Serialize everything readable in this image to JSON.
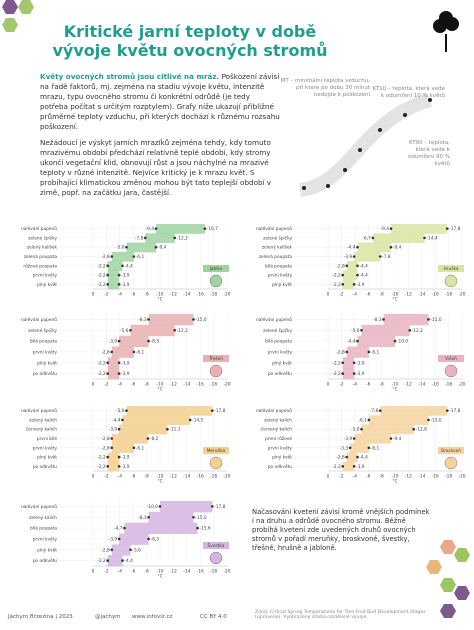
{
  "header": {
    "title": "Kritické jarní teploty v době vývoje květu ovocných stromů"
  },
  "intro": {
    "lead": "Květy ovocných stromů jsou citlivé na mráz.",
    "text": "Poškození závisí na řadě faktorů, mj. zejména na stadiu vývoje květu, intenzitě mrazu, typu ovocného stromu či konkrétní odrůdě (je tedy potřeba počítat s určitým rozptylem). Grafy níže ukazují přibližné průměrné teploty vzduchu, při kterých dochází k různému rozsahu poškození.",
    "p2": "Nežádoucí je výskyt jarních mrazíků zejména tehdy, kdy tomuto mrazivému období předchází relativně teplé období, kdy stromy ukončí vegetační klid, obnovují růst a jsou náchylné na mrazivé teploty v různé intenzitě. Nejvíce kritický je k mrazu květ. S probíhající klimatickou změnou mohou být tato teplejší období v zimě, popř. na začátku jara, častější."
  },
  "legend": {
    "mt": "MT – minimální teplota vzduchu, při které po dobu 30 minut nedojde k poškození",
    "kt10": "KT10 – teplota, která vede k odumření 10 % květů",
    "kt90": "KT90 – teplota, která vede k odumření 90 % květů"
  },
  "chart_data": [
    {
      "type": "range",
      "name": "Jablko",
      "color": "#9fd3a0",
      "categories": [
        "nalévání pupenů",
        "zelené špičky",
        "zelený kalíšek",
        "zelená poupata",
        "růžová poupata",
        "první květy",
        "plný květ"
      ],
      "series": [
        {
          "color": "#333333",
          "values": [
            -9.4,
            -7.8,
            -5.0,
            -2.8,
            -2.2,
            -2.2,
            -2.2
          ],
          "value_labels": [
            "-9,4",
            "-7,8",
            "-5,0",
            "-2,8",
            "-2,2",
            "-2,2",
            "-2,2"
          ]
        },
        {
          "color": "#333333",
          "values": [
            -16.7,
            -12.2,
            -9.4,
            -6.1,
            -4.4,
            -3.9,
            -3.9
          ],
          "value_labels": [
            "-16,7",
            "-12,2",
            "-9,4",
            "-6,1",
            "-4,4",
            "-3,9",
            "-3,9"
          ]
        }
      ],
      "xlim": [
        0,
        -20
      ],
      "xticks": [
        0,
        -2,
        -4,
        -6,
        -8,
        -10,
        -12,
        -14,
        -16,
        -18,
        -20
      ],
      "xlabel": "°C"
    },
    {
      "type": "range",
      "name": "Hruška",
      "color": "#d9e4a3",
      "categories": [
        "nalévání pupenů",
        "zelené špičky",
        "zelený kalíšek",
        "zelená poupata",
        "bílá poupata",
        "první květy",
        "plný květ"
      ],
      "series": [
        {
          "color": "#333333",
          "values": [
            -9.4,
            -6.7,
            -4.4,
            -3.9,
            -2.8,
            -2.2,
            -2.2
          ],
          "value_labels": [
            "-9,4",
            "-6,7",
            "-4,4",
            "-3,9",
            "-2,8",
            "-2,2",
            "-2,2"
          ]
        },
        {
          "color": "#333333",
          "values": [
            -17.8,
            -14.4,
            -9.4,
            -7.8,
            -4.4,
            -4.4,
            -3.9
          ],
          "value_labels": [
            "-17,8",
            "-14,4",
            "-9,4",
            "-7,8",
            "-4,4",
            "-4,4",
            "-3,9"
          ]
        }
      ],
      "xlim": [
        0,
        -20
      ],
      "xticks": [
        0,
        -2,
        -4,
        -6,
        -8,
        -10,
        -12,
        -14,
        -16,
        -18,
        -20
      ],
      "xlabel": "°C"
    },
    {
      "type": "range",
      "name": "Třešeň",
      "color": "#e8b0b0",
      "categories": [
        "nalévání pupenů",
        "zelené špičky",
        "bílá poupata",
        "první květy",
        "plný květ",
        "po odkvětu"
      ],
      "series": [
        {
          "color": "#333333",
          "values": [
            -8.3,
            -5.6,
            -3.9,
            -2.8,
            -2.2,
            -2.2
          ],
          "value_labels": [
            "-8,3",
            "-5,6",
            "-3,9",
            "-2,8",
            "-2,2",
            "-2,2"
          ]
        },
        {
          "color": "#333333",
          "values": [
            -15.0,
            -12.2,
            -8.3,
            -6.1,
            -3.9,
            -3.9
          ],
          "value_labels": [
            "-15,0",
            "-12,2",
            "-8,3",
            "-6,1",
            "-3,9",
            "-3,9"
          ]
        }
      ],
      "xlim": [
        0,
        -20
      ],
      "xticks": [
        0,
        -2,
        -4,
        -6,
        -8,
        -10,
        -12,
        -14,
        -16,
        -18,
        -20
      ],
      "xlabel": "°C"
    },
    {
      "type": "range",
      "name": "Višeň",
      "color": "#e9b3c0",
      "categories": [
        "nalévání pupenů",
        "zelené špičky",
        "bílá poupata",
        "první květy",
        "plný květ",
        "po odkvětu"
      ],
      "series": [
        {
          "color": "#333333",
          "values": [
            -8.3,
            -5.0,
            -4.4,
            -2.8,
            -2.2,
            -2.2
          ],
          "value_labels": [
            "-8,3",
            "-5,0",
            "-4,4",
            "-2,8",
            "-2,2",
            "-2,2"
          ]
        },
        {
          "color": "#333333",
          "values": [
            -15.0,
            -12.2,
            -10.0,
            -6.1,
            -3.9,
            -3.9
          ],
          "value_labels": [
            "-15,0",
            "-12,2",
            "-10,0",
            "-6,1",
            "-3,9",
            "-3,9"
          ]
        }
      ],
      "xlim": [
        0,
        -20
      ],
      "xticks": [
        0,
        -2,
        -4,
        -6,
        -8,
        -10,
        -12,
        -14,
        -16,
        -18,
        -20
      ],
      "xlabel": "°C"
    },
    {
      "type": "range",
      "name": "Meruňka",
      "color": "#f4cf8e",
      "categories": [
        "nalévání pupenů",
        "zelený kalich",
        "červený kalich",
        "první bílé",
        "první květy",
        "plný květ",
        "po odkvětu"
      ],
      "series": [
        {
          "color": "#333333",
          "values": [
            -5.0,
            -4.4,
            -3.9,
            -2.8,
            -2.8,
            -2.2,
            -2.2
          ],
          "value_labels": [
            "-5,0",
            "-4,4",
            "-3,9",
            "-2,8",
            "-2,8",
            "-2,2",
            "-2,2"
          ]
        },
        {
          "color": "#333333",
          "values": [
            -17.8,
            -14.5,
            -11.1,
            -8.2,
            -6.1,
            -3.9,
            -3.9
          ],
          "value_labels": [
            "-17,8",
            "-14,5",
            "-11,1",
            "-8,2",
            "-6,1",
            "-3,9",
            "-3,9"
          ]
        }
      ],
      "xlim": [
        0,
        -20
      ],
      "xticks": [
        0,
        -2,
        -4,
        -6,
        -8,
        -10,
        -12,
        -14,
        -16,
        -18,
        -20
      ],
      "xlabel": "°C"
    },
    {
      "type": "range",
      "name": "Broskvoň",
      "color": "#f6d2a0",
      "categories": [
        "nalévání pupenů",
        "zelený kalich",
        "červený kalich",
        "první růžové",
        "první květy",
        "plný květ",
        "po odkvětu"
      ],
      "series": [
        {
          "color": "#333333",
          "values": [
            -7.8,
            -6.1,
            -5.0,
            -3.9,
            -3.3,
            -2.8,
            -2.2
          ],
          "value_labels": [
            "-7,8",
            "-6,1",
            "-5,0",
            "-3,9",
            "-3,3",
            "-2,8",
            "-2,2"
          ]
        },
        {
          "color": "#333333",
          "values": [
            -17.8,
            -15.0,
            -12.8,
            -9.4,
            -6.1,
            -4.4,
            -3.9
          ],
          "value_labels": [
            "-17,8",
            "-15,0",
            "-12,8",
            "-9,4",
            "-6,1",
            "-4,4",
            "-3,9"
          ]
        }
      ],
      "xlim": [
        0,
        -20
      ],
      "xticks": [
        0,
        -2,
        -4,
        -6,
        -8,
        -10,
        -12,
        -14,
        -16,
        -18,
        -20
      ],
      "xlabel": "°C"
    },
    {
      "type": "range",
      "name": "Švestka",
      "color": "#d3b5e0",
      "categories": [
        "nalévání pupenů",
        "zelený kalich",
        "bílá poupata",
        "první květy",
        "plný květ",
        "po odkvětu"
      ],
      "series": [
        {
          "color": "#333333",
          "values": [
            -10.0,
            -8.3,
            -4.7,
            -3.9,
            -2.8,
            -2.2
          ],
          "value_labels": [
            "-10,0",
            "-8,3",
            "-4,7",
            "-3,9",
            "-2,8",
            "-2,2"
          ]
        },
        {
          "color": "#333333",
          "values": [
            -17.8,
            -15.0,
            -15.6,
            -8.3,
            -5.6,
            -4.4
          ],
          "value_labels": [
            "-17,8",
            "-15,0",
            "-15,6",
            "-8,3",
            "-5,6",
            "-4,4"
          ]
        }
      ],
      "xlim": [
        0,
        -20
      ],
      "xticks": [
        0,
        -2,
        -4,
        -6,
        -8,
        -10,
        -12,
        -14,
        -16,
        -18,
        -20
      ],
      "xlabel": "°C"
    }
  ],
  "note": "Načasování kvetení závisí kromě vnějších podmínek i na druhu a odrůdě ovocného stromu. Běžně probíhá kvetení zde uvedených druhů ovocných stromů v pořadí meruňky, broskvoně, švestky, třešně, hrušně a jabloně.",
  "footer": {
    "author": "Jáchym Brzezina | 2023",
    "handle": "@jachym",
    "site": "www.infoviz.cz",
    "license": "CC BY 4.0",
    "source": "Zdroj: Critical Spring Temperatures for Tree Fruit Bud Development Stages (upraveno). Vyobrazený stádia rozdělené vývoje."
  }
}
